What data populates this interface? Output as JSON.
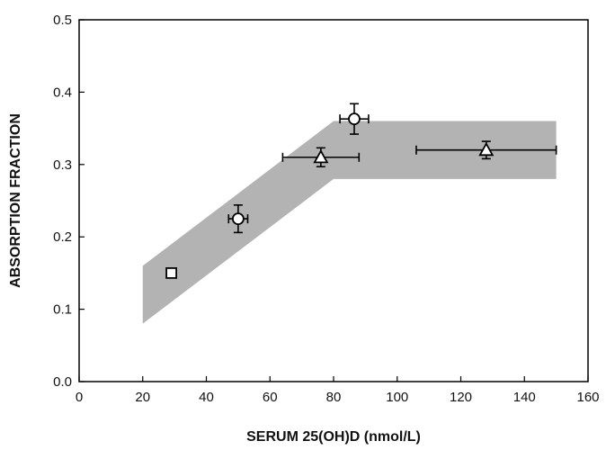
{
  "chart_data": {
    "type": "scatter",
    "title": "",
    "xlabel": "SERUM 25(OH)D (nmol/L)",
    "ylabel": "ABSORPTION FRACTION",
    "xlim": [
      0,
      160
    ],
    "ylim": [
      0.0,
      0.5
    ],
    "x_ticks": [
      0,
      20,
      40,
      60,
      80,
      100,
      120,
      140,
      160
    ],
    "y_ticks": [
      0.0,
      0.1,
      0.2,
      0.3,
      0.4,
      0.5
    ],
    "x_tick_labels": [
      "0",
      "20",
      "40",
      "60",
      "80",
      "100",
      "120",
      "140",
      "160"
    ],
    "y_tick_labels": [
      "0.0",
      "0.1",
      "0.2",
      "0.3",
      "0.4",
      "0.5"
    ],
    "grid": false,
    "legend": "none",
    "shaded_band": {
      "upper": [
        [
          20,
          0.16
        ],
        [
          80,
          0.36
        ],
        [
          150,
          0.36
        ]
      ],
      "lower": [
        [
          20,
          0.08
        ],
        [
          80,
          0.28
        ],
        [
          150,
          0.28
        ]
      ],
      "color": "#b3b3b3"
    },
    "points": [
      {
        "marker": "square",
        "x": 29,
        "y": 0.15,
        "x_err": 0,
        "y_err": 0
      },
      {
        "marker": "circle",
        "x": 50,
        "y": 0.225,
        "x_err": 3,
        "y_err": 0.019
      },
      {
        "marker": "triangle",
        "x": 76,
        "y": 0.31,
        "x_err": 12,
        "y_err": 0.013
      },
      {
        "marker": "circle",
        "x": 86.5,
        "y": 0.363,
        "x_err": 4.5,
        "y_err": 0.021
      },
      {
        "marker": "triangle",
        "x": 128,
        "y": 0.32,
        "x_err": 22,
        "y_err": 0.012
      }
    ]
  }
}
